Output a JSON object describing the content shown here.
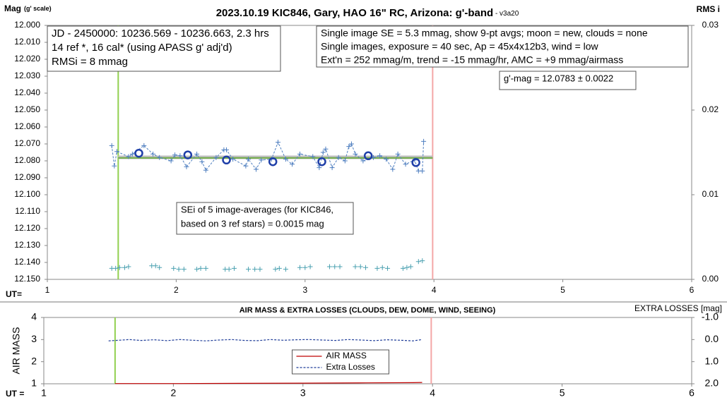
{
  "chart_data": [
    {
      "type": "line",
      "title": "2023.10.19 KIC846, Gary, HAO 16\" RC, Arizona: g'-band",
      "title_note": " - v3a20",
      "ylabel": "Mag",
      "ylabel_note": "(g' scale)",
      "y2label": "RMS i",
      "xlabel": "UT=",
      "xlim": [
        1,
        6
      ],
      "xticks": [
        1,
        2,
        3,
        4,
        5,
        6
      ],
      "ylim": [
        12.0,
        12.15
      ],
      "y_inverted": true,
      "yticks": [
        {
          "value": 12.0,
          "label": "12.000"
        },
        {
          "value": 12.01,
          "label": "12.010"
        },
        {
          "value": 12.02,
          "label": "12.020"
        },
        {
          "value": 12.03,
          "label": "12.030"
        },
        {
          "value": 12.04,
          "label": "12.040"
        },
        {
          "value": 12.05,
          "label": "12.050"
        },
        {
          "value": 12.06,
          "label": "12.060"
        },
        {
          "value": 12.07,
          "label": "12.070"
        },
        {
          "value": 12.08,
          "label": "12.080"
        },
        {
          "value": 12.09,
          "label": "12.090"
        },
        {
          "value": 12.1,
          "label": "12.100"
        },
        {
          "value": 12.11,
          "label": "12.110"
        },
        {
          "value": 12.12,
          "label": "12.120"
        },
        {
          "value": 12.13,
          "label": "12.130"
        },
        {
          "value": 12.14,
          "label": "12.140"
        },
        {
          "value": 12.15,
          "label": "12.150"
        }
      ],
      "y2lim": [
        0,
        0.03
      ],
      "y2ticks": [
        {
          "value": 0,
          "label": "0.00"
        },
        0.01,
        0.02,
        0.03
      ],
      "vlines": [
        {
          "x": 1.55,
          "color": "#92d050"
        },
        {
          "x": 3.99,
          "color": "#f4a6a6"
        }
      ],
      "series": [
        {
          "color": "#bfbfbf",
          "width": 5,
          "marker": "none",
          "x": [
            1.55,
            3.99
          ],
          "values": [
            12.0779,
            12.0779
          ]
        },
        {
          "color": "#70ad47",
          "width": 2,
          "marker": "none",
          "x": [
            1.55,
            3.99
          ],
          "values": [
            12.0783,
            12.0783
          ]
        },
        {
          "color": "#4f7fc0",
          "width": 1,
          "dash": true,
          "marker": "plus",
          "x": [
            1.5,
            1.52,
            1.54,
            1.63,
            1.66,
            1.75,
            1.82,
            1.87,
            1.96,
            1.99,
            2.03,
            2.08,
            2.16,
            2.2,
            2.23,
            2.31,
            2.37,
            2.39,
            2.44,
            2.54,
            2.56,
            2.62,
            2.66,
            2.74,
            2.79,
            2.85,
            2.9,
            2.96,
            3.06,
            3.11,
            3.14,
            3.16,
            3.21,
            3.26,
            3.31,
            3.34,
            3.36,
            3.39,
            3.45,
            3.53,
            3.58,
            3.63,
            3.68,
            3.72,
            3.78,
            3.85,
            3.88,
            3.91,
            3.92
          ],
          "values": [
            12.071,
            12.083,
            12.0745,
            12.0775,
            12.076,
            12.071,
            12.076,
            12.078,
            12.08,
            12.0765,
            12.077,
            12.0835,
            12.076,
            12.0805,
            12.0855,
            12.078,
            12.0735,
            12.0735,
            12.079,
            12.083,
            12.079,
            12.085,
            12.0795,
            12.079,
            12.069,
            12.079,
            12.082,
            12.076,
            12.0775,
            12.084,
            12.075,
            12.073,
            12.084,
            12.078,
            12.08,
            12.0715,
            12.07,
            12.076,
            12.08,
            12.078,
            12.077,
            12.079,
            12.085,
            12.076,
            12.082,
            12.0795,
            12.086,
            12.086,
            12.0685
          ]
        },
        {
          "color": "#1f3fa8",
          "width": 2.5,
          "marker": "circle",
          "line": false,
          "x": [
            1.71,
            2.09,
            2.39,
            2.75,
            3.13,
            3.49,
            3.86
          ],
          "values": [
            12.0755,
            12.0765,
            12.0795,
            12.0805,
            12.0805,
            12.077,
            12.081
          ]
        },
        {
          "color": "#4aa0b0",
          "width": 1,
          "marker": "plus",
          "line": false,
          "axis": "y2",
          "x": [
            1.5,
            1.53,
            1.56,
            1.6,
            1.63,
            1.81,
            1.84,
            1.87,
            1.98,
            2.02,
            2.06,
            2.16,
            2.19,
            2.23,
            2.38,
            2.41,
            2.45,
            2.56,
            2.61,
            2.65,
            2.77,
            2.8,
            2.85,
            2.96,
            3.0,
            3.04,
            3.19,
            3.23,
            3.27,
            3.39,
            3.43,
            3.47,
            3.56,
            3.6,
            3.64,
            3.76,
            3.79,
            3.82,
            3.88,
            3.91
          ],
          "values": [
            0.0013,
            0.0013,
            0.0014,
            0.0014,
            0.0015,
            0.0016,
            0.0016,
            0.0014,
            0.0013,
            0.0012,
            0.0012,
            0.0012,
            0.0013,
            0.0013,
            0.0012,
            0.0012,
            0.0013,
            0.0012,
            0.0012,
            0.0012,
            0.0012,
            0.0013,
            0.0012,
            0.0014,
            0.0014,
            0.0015,
            0.0015,
            0.0015,
            0.0015,
            0.0015,
            0.0015,
            0.0014,
            0.0013,
            0.0014,
            0.0013,
            0.0013,
            0.0014,
            0.0015,
            0.0021,
            0.0022
          ]
        }
      ],
      "annotations": [
        {
          "lines": [
            "JD - 2450000: 10236.569 - 10236.663, 2.3 hrs",
            "14 ref *, 16 cal* (using APASS g' adj'd)",
            "RMSi = 8 mmag"
          ]
        },
        {
          "lines": [
            "Single image SE = 5.3 mmag, show  9-pt avgs; moon = new, clouds = none",
            "Single images, exposure = 40 sec, Ap = 45x4x12b3, wind = low",
            "Ext'n = 252 mmag/m, trend = -15 mmag/hr, AMC = +9 mmag/airmass"
          ]
        },
        {
          "lines": [
            "g'-mag = 12.0783 ± 0.0022"
          ]
        },
        {
          "lines": [
            "SEi of 5 image-averages (for KIC846,",
            "based on 3 ref stars) = 0.0015 mag"
          ]
        }
      ]
    },
    {
      "type": "line",
      "title": "AIR MASS & EXTRA LOSSES (CLOUDS, DEW, DOME, WIND, SEEING)",
      "ylabel": "AIR MASS",
      "y2label": "EXTRA LOSSES [mag]",
      "xlabel": "UT =",
      "xlim": [
        1,
        6
      ],
      "xticks": [
        1,
        2,
        3,
        4,
        5,
        6
      ],
      "ylim": [
        1,
        4
      ],
      "yticks": [
        1,
        2,
        3,
        4
      ],
      "y2lim": [
        -1,
        2
      ],
      "y2_inverted": true,
      "y2ticks": [
        {
          "value": -1,
          "label": "-1.0"
        },
        {
          "value": 0,
          "label": "0.0"
        },
        {
          "value": 1,
          "label": "1.0"
        },
        {
          "value": 2,
          "label": "2.0"
        }
      ],
      "vlines": [
        {
          "x": 1.55,
          "color": "#92d050"
        },
        {
          "x": 3.99,
          "color": "#f4a6a6"
        }
      ],
      "legend": "bottom-center",
      "series": [
        {
          "name": "AIR MASS",
          "color": "#c00000",
          "width": 1.2,
          "marker": "none",
          "x": [
            1.55,
            2.0,
            2.5,
            3.0,
            3.5,
            3.85,
            3.92
          ],
          "values": [
            1.01,
            1.01,
            1.02,
            1.03,
            1.04,
            1.05,
            1.06
          ]
        },
        {
          "name": "Extra Losses",
          "color": "#1f3d99",
          "width": 1.2,
          "dash": true,
          "marker": "none",
          "axis": "y2",
          "x": [
            1.5,
            1.58,
            1.66,
            1.75,
            1.85,
            1.95,
            2.05,
            2.15,
            2.25,
            2.35,
            2.45,
            2.55,
            2.65,
            2.75,
            2.85,
            2.95,
            3.05,
            3.15,
            3.25,
            3.35,
            3.45,
            3.55,
            3.65,
            3.75,
            3.85,
            3.92
          ],
          "values": [
            0.06,
            0.03,
            0.0,
            0.04,
            0.01,
            0.05,
            0.0,
            0.03,
            0.06,
            0.02,
            0.0,
            0.04,
            0.05,
            0.0,
            0.03,
            0.01,
            0.0,
            0.02,
            0.04,
            0.0,
            0.02,
            0.05,
            0.01,
            0.03,
            0.06,
            0.0
          ]
        }
      ]
    }
  ]
}
